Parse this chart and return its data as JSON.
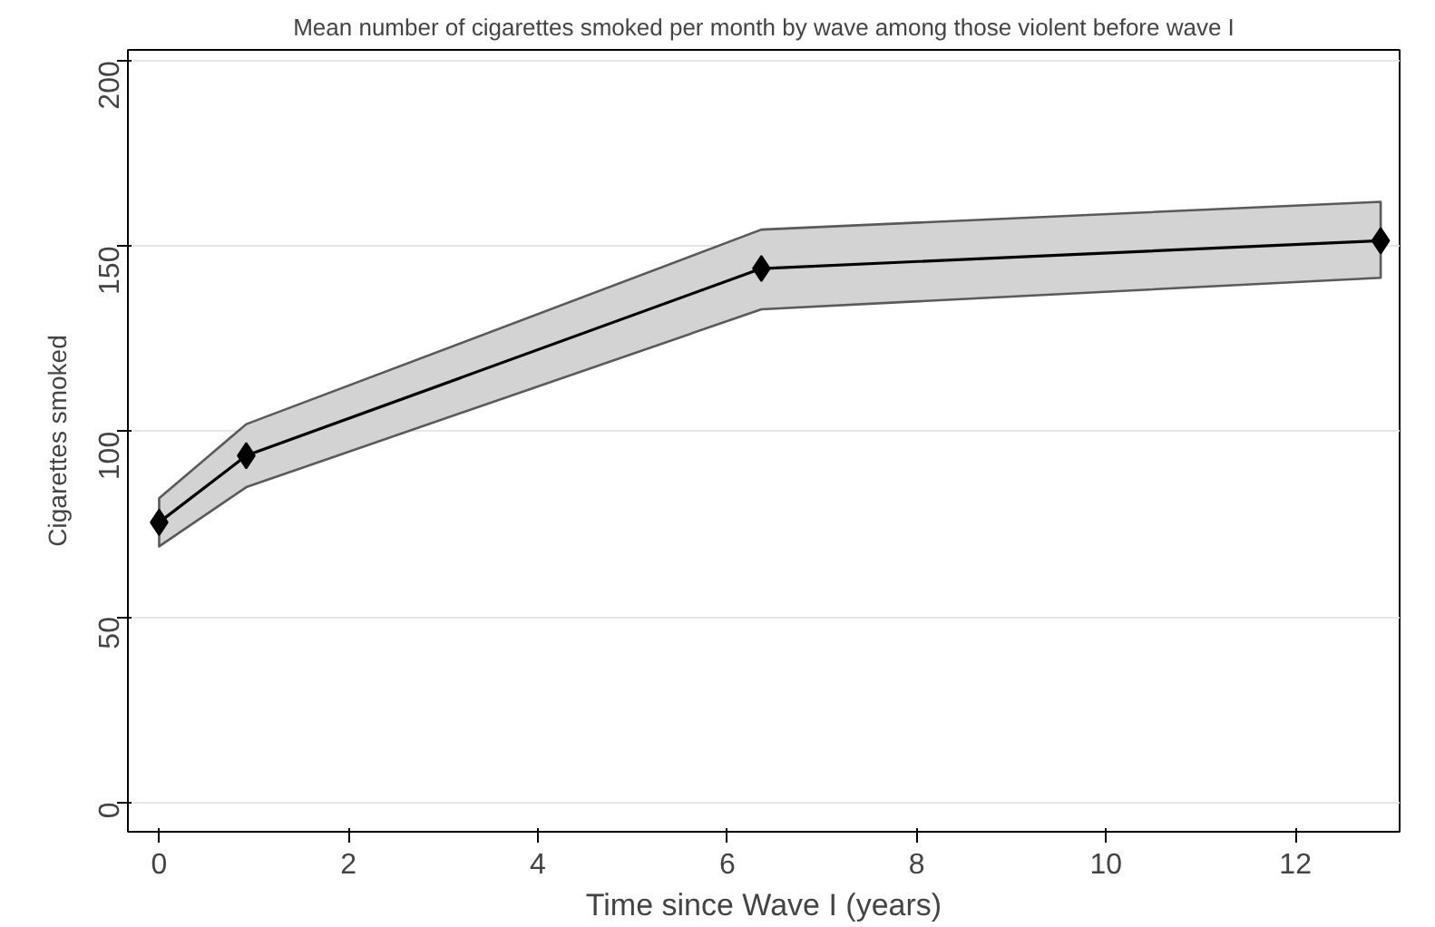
{
  "chart_data": {
    "type": "line",
    "title": "Mean number of cigarettes smoked per month by wave among those violent before wave I",
    "xlabel": "Time since Wave I (years)",
    "ylabel": "Cigarettes smoked",
    "x": [
      0,
      0.92,
      6.36,
      12.9
    ],
    "series": [
      {
        "color": "#000000",
        "values": [
          75.5,
          93.5,
          144,
          151.5
        ],
        "lower": [
          69,
          85,
          133,
          141.5
        ],
        "upper": [
          82,
          102,
          154.5,
          162
        ]
      }
    ],
    "xlim": [
      -0.33,
      13.1
    ],
    "ylim": [
      -8,
      203
    ],
    "xticks": [
      0,
      2,
      4,
      6,
      8,
      10,
      12
    ],
    "yticks": [
      0,
      50,
      100,
      150,
      200
    ],
    "grid": "y",
    "marker": "diamond",
    "line_style": "solid"
  }
}
